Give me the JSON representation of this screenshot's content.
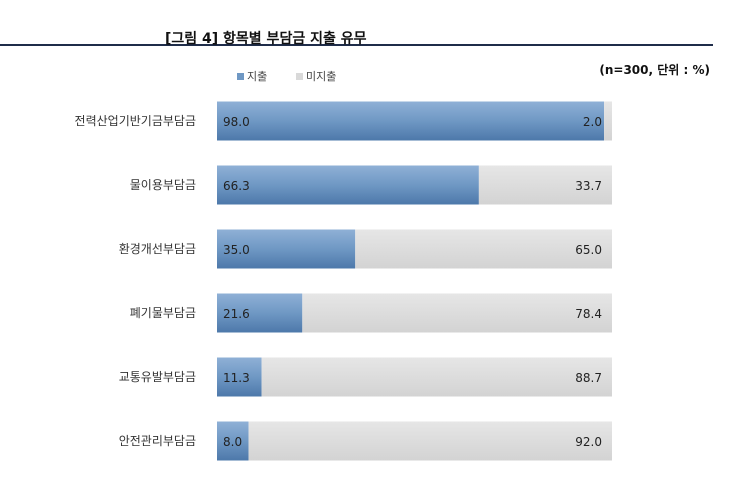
{
  "chart_data": {
    "type": "bar",
    "orientation": "horizontal",
    "stacked": true,
    "percent": true,
    "title": "[그림 4] 항목별 부담금 지출 유무",
    "note": "(n=300, 단위 : %)",
    "categories": [
      "전력산업기반기금부담금",
      "물이용부담금",
      "환경개선부담금",
      "폐기물부담금",
      "교통유발부담금",
      "안전관리부담금"
    ],
    "series": [
      {
        "name": "지출",
        "values": [
          98.0,
          66.3,
          35.0,
          21.6,
          11.3,
          8.0
        ],
        "labels": [
          "98.0",
          "66.3",
          "35.0",
          "21.6",
          "11.3",
          "8.0"
        ],
        "color": "#6f98c4"
      },
      {
        "name": "미지출",
        "values": [
          2.0,
          33.7,
          65.0,
          78.4,
          88.7,
          92.0
        ],
        "labels": [
          "2.0",
          "33.7",
          "65.0",
          "78.4",
          "88.7",
          "92.0"
        ],
        "color": "#d9d9d9"
      }
    ],
    "xlim": [
      0,
      100
    ],
    "legend_position": "top",
    "grid": false
  }
}
